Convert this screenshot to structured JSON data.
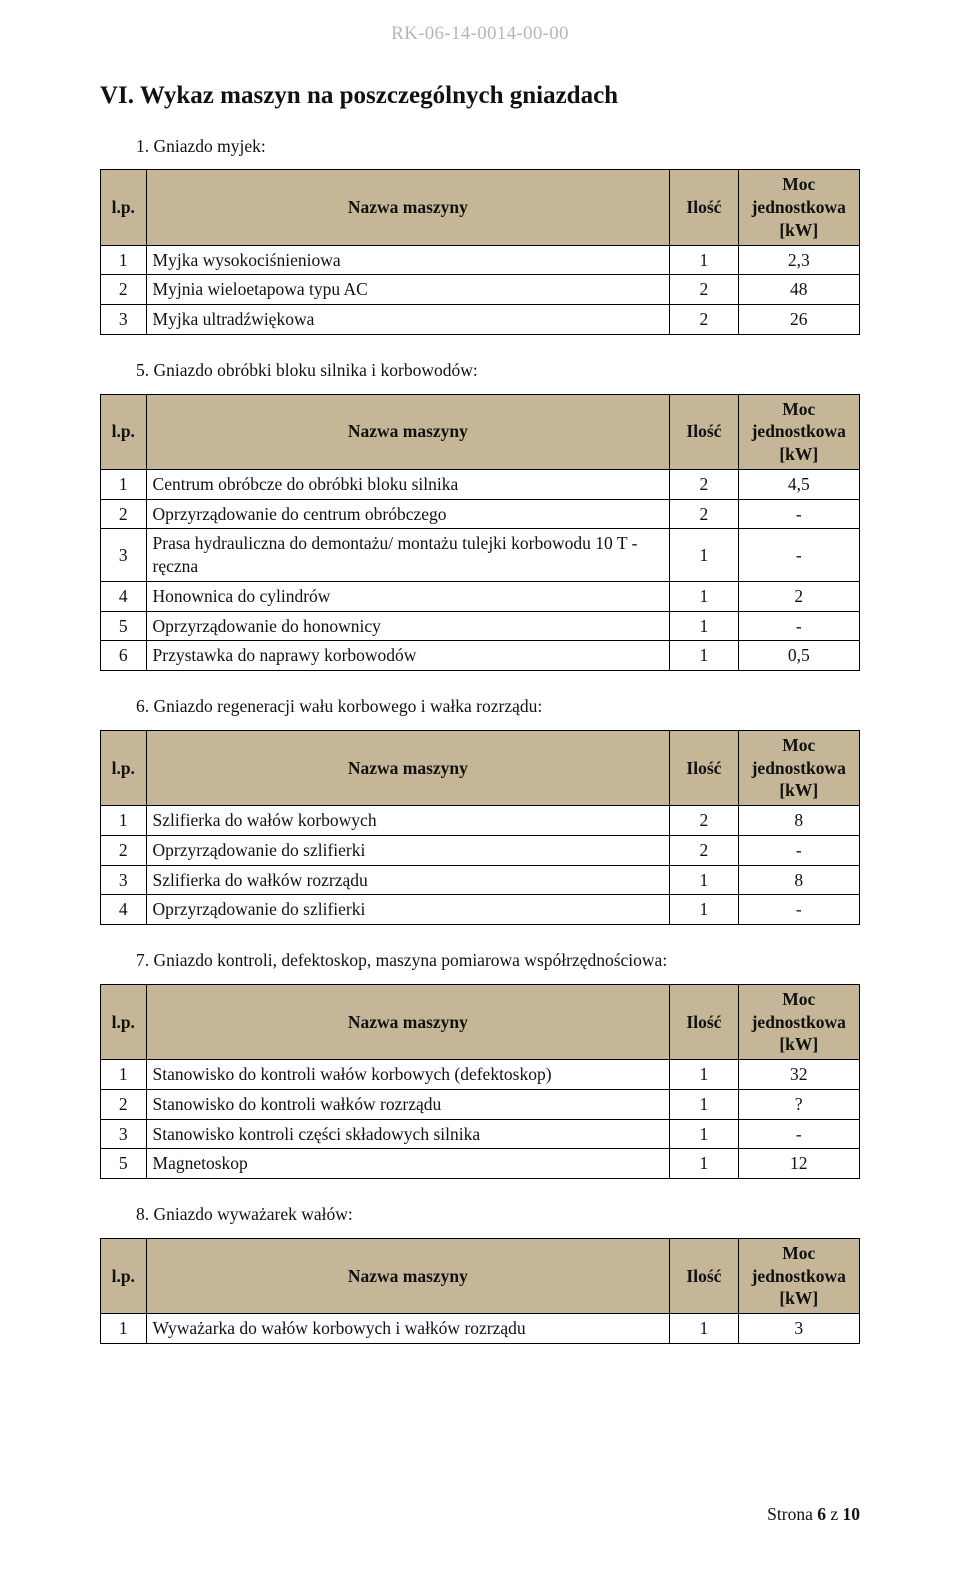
{
  "doc_id": "RK-06-14-0014-00-00",
  "footer": {
    "prefix": "Strona ",
    "page_bold": "6",
    "middle": " z ",
    "total_bold": "10"
  },
  "main_title": "VI. Wykaz maszyn na poszczególnych gniazdach",
  "table_headers": {
    "lp": "l.p.",
    "name": "Nazwa maszyny",
    "qty": "Ilość",
    "pow_l1": "Moc",
    "pow_l2": "jednostkowa",
    "pow_l3": "[kW]"
  },
  "colors": {
    "header_bg": "#c4b696",
    "border": "#000000",
    "page_bg": "#ffffff",
    "body_bg": "#ebebeb",
    "doc_id": "#b7b7b7",
    "text": "#111111"
  },
  "sections": [
    {
      "label": "1. Gniazdo myjek:",
      "rows": [
        {
          "lp": "1",
          "name": "Myjka wysokociśnieniowa",
          "qty": "1",
          "pow": "2,3"
        },
        {
          "lp": "2",
          "name": "Myjnia wieloetapowa typu AC",
          "qty": "2",
          "pow": "48"
        },
        {
          "lp": "3",
          "name": "Myjka ultradźwiękowa",
          "qty": "2",
          "pow": "26"
        }
      ]
    },
    {
      "label": "5. Gniazdo obróbki bloku silnika i korbowodów:",
      "rows": [
        {
          "lp": "1",
          "name": "Centrum obróbcze do obróbki bloku silnika",
          "qty": "2",
          "pow": "4,5"
        },
        {
          "lp": "2",
          "name": "Oprzyrządowanie do centrum obróbczego",
          "qty": "2",
          "pow": "-"
        },
        {
          "lp": "3",
          "name": "Prasa hydrauliczna do demontażu/ montażu tulejki korbowodu 10 T - ręczna",
          "qty": "1",
          "pow": "-"
        },
        {
          "lp": "4",
          "name": "Honownica do cylindrów",
          "qty": "1",
          "pow": "2"
        },
        {
          "lp": "5",
          "name": "Oprzyrządowanie do honownicy",
          "qty": "1",
          "pow": "-"
        },
        {
          "lp": "6",
          "name": "Przystawka do naprawy korbowodów",
          "qty": "1",
          "pow": "0,5"
        }
      ]
    },
    {
      "label": "6. Gniazdo regeneracji wału korbowego i wałka rozrządu:",
      "rows": [
        {
          "lp": "1",
          "name": "Szlifierka do wałów korbowych",
          "qty": "2",
          "pow": "8"
        },
        {
          "lp": "2",
          "name": "Oprzyrządowanie do szlifierki",
          "qty": "2",
          "pow": "-"
        },
        {
          "lp": "3",
          "name": "Szlifierka do wałków rozrządu",
          "qty": "1",
          "pow": "8"
        },
        {
          "lp": "4",
          "name": "Oprzyrządowanie do szlifierki",
          "qty": "1",
          "pow": "-"
        }
      ]
    },
    {
      "label": "7. Gniazdo kontroli, defektoskop, maszyna pomiarowa współrzędnościowa:",
      "rows": [
        {
          "lp": "1",
          "name": "Stanowisko do kontroli wałów korbowych (defektoskop)",
          "qty": "1",
          "pow": "32"
        },
        {
          "lp": "2",
          "name": "Stanowisko do kontroli wałków rozrządu",
          "qty": "1",
          "pow": "?"
        },
        {
          "lp": "3",
          "name": "Stanowisko kontroli części składowych silnika",
          "qty": "1",
          "pow": "-"
        },
        {
          "lp": "5",
          "name": "Magnetoskop",
          "qty": "1",
          "pow": "12"
        }
      ]
    },
    {
      "label": "8. Gniazdo wyważarek wałów:",
      "rows": [
        {
          "lp": "1",
          "name": "Wyważarka do wałów korbowych i wałków rozrządu",
          "qty": "1",
          "pow": "3"
        }
      ]
    }
  ]
}
